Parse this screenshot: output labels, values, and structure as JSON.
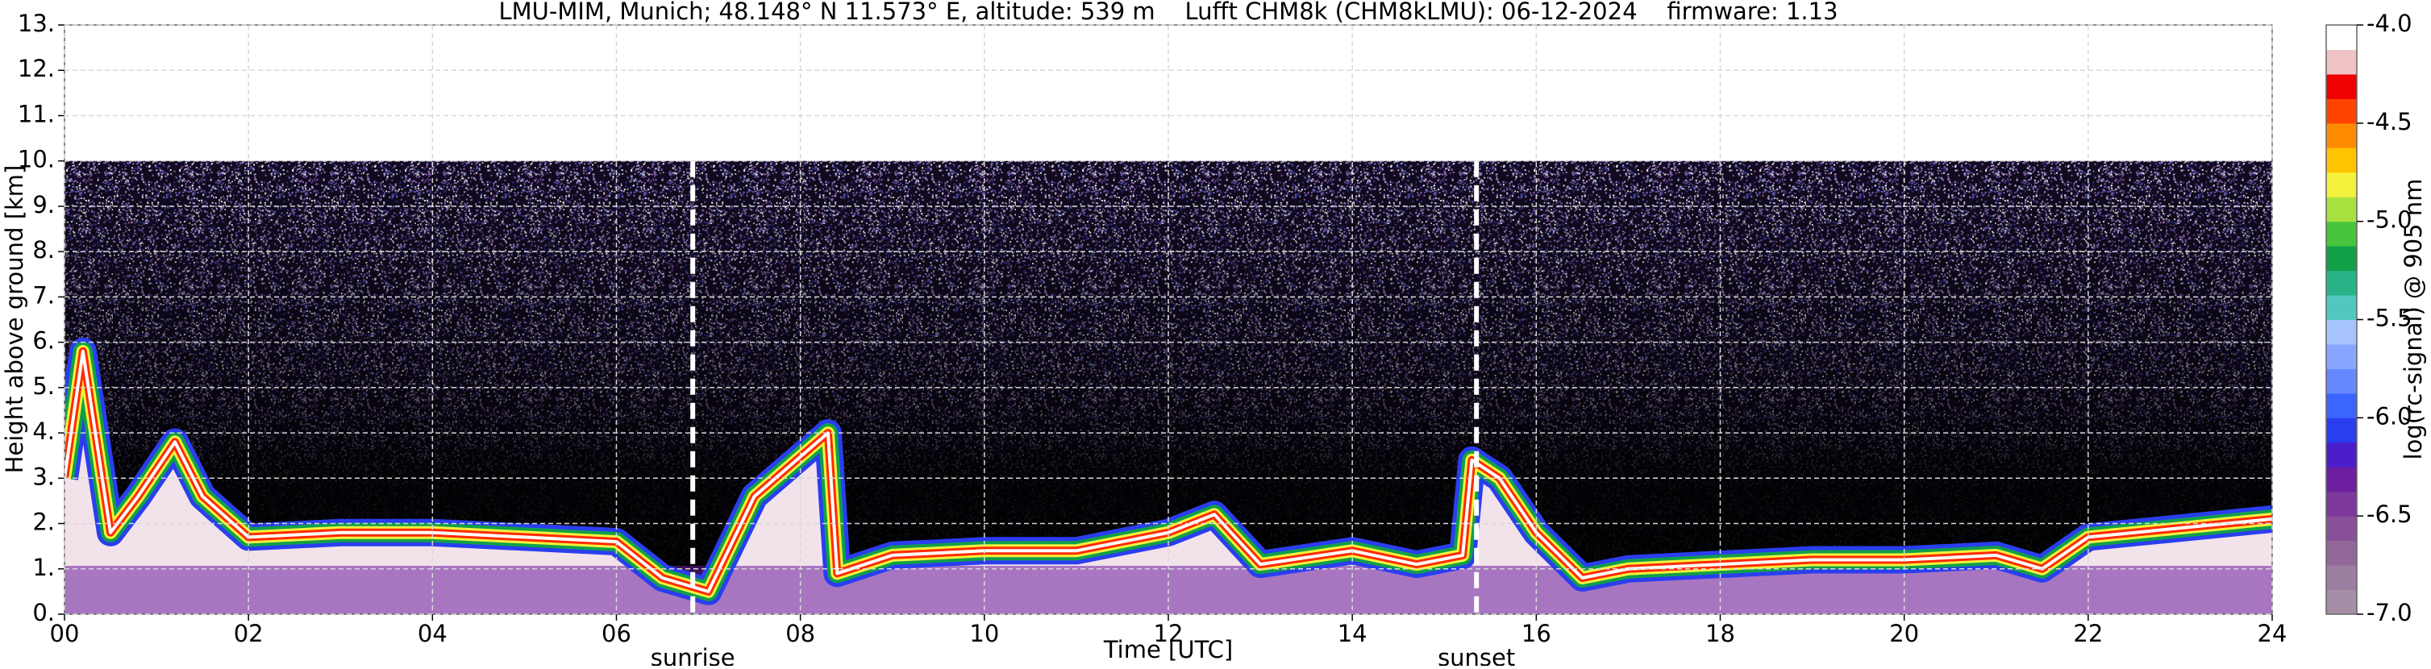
{
  "chart_data": {
    "type": "heatmap",
    "title": "LMU-MIM, Munich; 48.148° N 11.573° E, altitude: 539 m    Lufft CHM8k (CHM8kLMU): 06-12-2024    firmware: 1.13",
    "xlabel": "Time [UTC]",
    "ylabel": "Height above ground [km]",
    "xlim": [
      0,
      24
    ],
    "xticks": [
      {
        "value": 0,
        "label": "00"
      },
      {
        "value": 2,
        "label": "02"
      },
      {
        "value": 4,
        "label": "04"
      },
      {
        "value": 6,
        "label": "06"
      },
      {
        "value": 8,
        "label": "08"
      },
      10,
      12,
      14,
      16,
      18,
      20,
      22,
      24
    ],
    "ylim": [
      0,
      13
    ],
    "yticks": [
      {
        "value": 0,
        "label": "0."
      },
      {
        "value": 1,
        "label": "1."
      },
      {
        "value": 2,
        "label": "2."
      },
      {
        "value": 3,
        "label": "3."
      },
      {
        "value": 4,
        "label": "4."
      },
      {
        "value": 5,
        "label": "5."
      },
      {
        "value": 6,
        "label": "6."
      },
      {
        "value": 7,
        "label": "7."
      },
      {
        "value": 8,
        "label": "8."
      },
      {
        "value": 9,
        "label": "9."
      },
      {
        "value": 10,
        "label": "10."
      },
      {
        "value": 11,
        "label": "11."
      },
      {
        "value": 12,
        "label": "12."
      },
      {
        "value": 13,
        "label": "13."
      }
    ],
    "grid": true,
    "max_range": 10,
    "series": [
      {
        "color": "#ff2a00",
        "fill": "#f2e2ea",
        "x": [
          0,
          0.2,
          0.5,
          0.8,
          1.2,
          1.5,
          2.0,
          3.0,
          4.0,
          5.0,
          6.0,
          6.5,
          7.0,
          7.5,
          8.3,
          8.4,
          9.0,
          10.0,
          11.0,
          12.0,
          12.5,
          13.0,
          14.0,
          14.7,
          15.2,
          15.3,
          15.6,
          16.0,
          16.5,
          17.0,
          18.0,
          19.0,
          20.0,
          21.0,
          21.5,
          22.0,
          23.0,
          24.0
        ],
        "values": [
          3.0,
          5.8,
          1.8,
          2.6,
          3.8,
          2.6,
          1.7,
          1.8,
          1.8,
          1.7,
          1.6,
          0.8,
          0.5,
          2.6,
          4.0,
          0.9,
          1.3,
          1.4,
          1.4,
          1.8,
          2.2,
          1.1,
          1.4,
          1.1,
          1.3,
          3.4,
          3.0,
          1.8,
          0.8,
          1.0,
          1.1,
          1.2,
          1.2,
          1.3,
          1.0,
          1.7,
          1.9,
          2.1
        ]
      }
    ],
    "annotations": [
      {
        "text": "sunrise",
        "x": 6.83
      },
      {
        "text": "sunset",
        "x": 15.35
      }
    ],
    "colorbar": {
      "label": "log(rc-signal) @ 905 nm",
      "lim": [
        -7,
        -4
      ],
      "ticks": [
        {
          "value": -7,
          "label": "-7.0"
        },
        -6.5,
        {
          "value": -6,
          "label": "-6.0"
        },
        -5.5,
        {
          "value": -5,
          "label": "-5.0"
        },
        -4.5,
        {
          "value": -4,
          "label": "-4.0"
        }
      ],
      "colors": [
        "#a68ea6",
        "#9c7ea0",
        "#92689a",
        "#875098",
        "#7c389a",
        "#6c1e9e",
        "#4a1ec8",
        "#2a3ef0",
        "#3a66ff",
        "#6688ff",
        "#88a6ff",
        "#a8c4ff",
        "#50c8c0",
        "#28b488",
        "#10a048",
        "#48c43c",
        "#a8e040",
        "#f2f23c",
        "#ffc400",
        "#ff8c00",
        "#ff4400",
        "#f00000",
        "#f0c4c4",
        "#ffffff"
      ]
    }
  }
}
